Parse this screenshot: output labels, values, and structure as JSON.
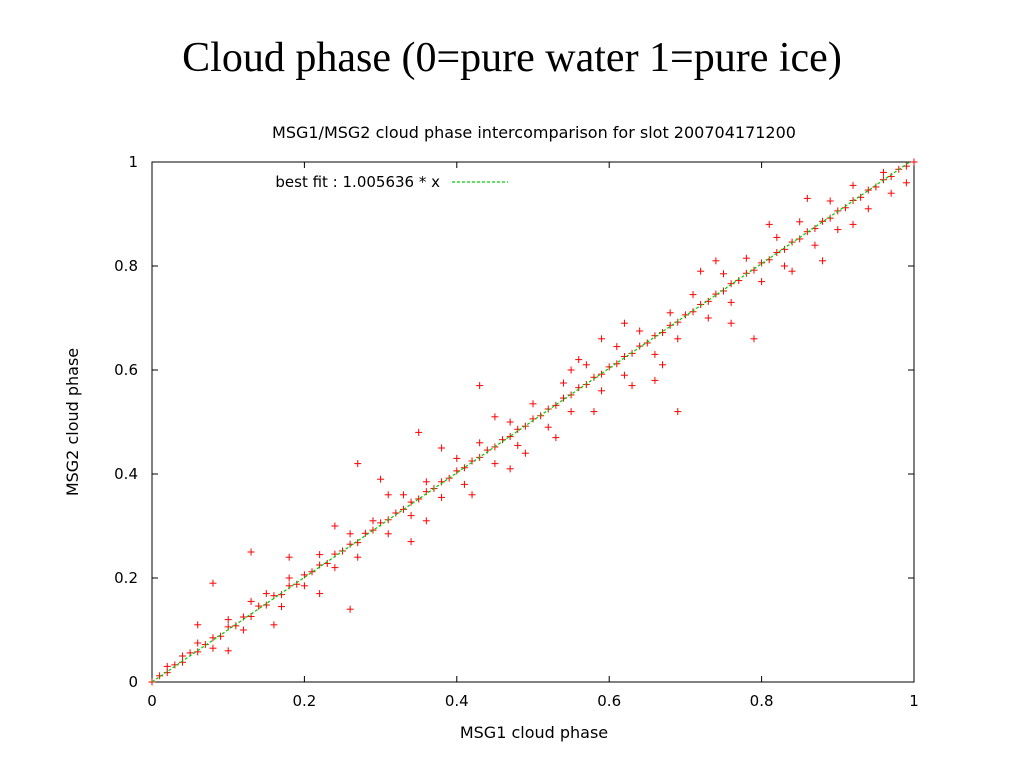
{
  "slide": {
    "title": "Cloud phase (0=pure water 1=pure ice)"
  },
  "chart_data": {
    "type": "scatter",
    "title": "MSG1/MSG2 cloud phase intercomparison for slot 200704171200",
    "xlabel": "MSG1 cloud phase",
    "ylabel": "MSG2 cloud phase",
    "xlim": [
      0,
      1
    ],
    "ylim": [
      0,
      1
    ],
    "xticks": [
      0,
      0.2,
      0.4,
      0.6,
      0.8,
      1
    ],
    "yticks": [
      0,
      0.2,
      0.4,
      0.6,
      0.8,
      1
    ],
    "xtick_labels": [
      "0",
      "0.2",
      "0.4",
      "0.6",
      "0.8",
      "1"
    ],
    "ytick_labels": [
      "0",
      "0.2",
      "0.4",
      "0.6",
      "0.8",
      "1"
    ],
    "grid": false,
    "legend_placement": "top-left",
    "marker": "+",
    "series": [
      {
        "color": "#ff0000",
        "points": [
          [
            0.0,
            0.0
          ],
          [
            0.01,
            0.012
          ],
          [
            0.02,
            0.018
          ],
          [
            0.03,
            0.033
          ],
          [
            0.04,
            0.038
          ],
          [
            0.05,
            0.056
          ],
          [
            0.06,
            0.058
          ],
          [
            0.07,
            0.072
          ],
          [
            0.08,
            0.085
          ],
          [
            0.09,
            0.088
          ],
          [
            0.1,
            0.106
          ],
          [
            0.11,
            0.108
          ],
          [
            0.12,
            0.125
          ],
          [
            0.13,
            0.126
          ],
          [
            0.14,
            0.146
          ],
          [
            0.15,
            0.148
          ],
          [
            0.16,
            0.166
          ],
          [
            0.17,
            0.168
          ],
          [
            0.18,
            0.185
          ],
          [
            0.19,
            0.188
          ],
          [
            0.2,
            0.206
          ],
          [
            0.21,
            0.212
          ],
          [
            0.22,
            0.225
          ],
          [
            0.23,
            0.228
          ],
          [
            0.24,
            0.246
          ],
          [
            0.25,
            0.252
          ],
          [
            0.26,
            0.265
          ],
          [
            0.27,
            0.268
          ],
          [
            0.28,
            0.286
          ],
          [
            0.29,
            0.292
          ],
          [
            0.3,
            0.306
          ],
          [
            0.31,
            0.312
          ],
          [
            0.32,
            0.325
          ],
          [
            0.33,
            0.332
          ],
          [
            0.34,
            0.346
          ],
          [
            0.35,
            0.352
          ],
          [
            0.36,
            0.366
          ],
          [
            0.37,
            0.372
          ],
          [
            0.38,
            0.385
          ],
          [
            0.39,
            0.392
          ],
          [
            0.4,
            0.406
          ],
          [
            0.41,
            0.412
          ],
          [
            0.42,
            0.425
          ],
          [
            0.43,
            0.432
          ],
          [
            0.44,
            0.446
          ],
          [
            0.45,
            0.452
          ],
          [
            0.46,
            0.466
          ],
          [
            0.47,
            0.472
          ],
          [
            0.48,
            0.486
          ],
          [
            0.49,
            0.492
          ],
          [
            0.5,
            0.506
          ],
          [
            0.51,
            0.512
          ],
          [
            0.52,
            0.525
          ],
          [
            0.53,
            0.532
          ],
          [
            0.54,
            0.546
          ],
          [
            0.55,
            0.552
          ],
          [
            0.56,
            0.566
          ],
          [
            0.57,
            0.572
          ],
          [
            0.58,
            0.586
          ],
          [
            0.59,
            0.592
          ],
          [
            0.6,
            0.606
          ],
          [
            0.61,
            0.612
          ],
          [
            0.62,
            0.626
          ],
          [
            0.63,
            0.632
          ],
          [
            0.64,
            0.646
          ],
          [
            0.65,
            0.652
          ],
          [
            0.66,
            0.666
          ],
          [
            0.67,
            0.672
          ],
          [
            0.68,
            0.686
          ],
          [
            0.69,
            0.692
          ],
          [
            0.7,
            0.706
          ],
          [
            0.71,
            0.712
          ],
          [
            0.72,
            0.726
          ],
          [
            0.73,
            0.732
          ],
          [
            0.74,
            0.746
          ],
          [
            0.75,
            0.752
          ],
          [
            0.76,
            0.766
          ],
          [
            0.77,
            0.772
          ],
          [
            0.78,
            0.786
          ],
          [
            0.79,
            0.792
          ],
          [
            0.8,
            0.806
          ],
          [
            0.81,
            0.812
          ],
          [
            0.82,
            0.826
          ],
          [
            0.83,
            0.832
          ],
          [
            0.84,
            0.846
          ],
          [
            0.85,
            0.852
          ],
          [
            0.86,
            0.866
          ],
          [
            0.87,
            0.872
          ],
          [
            0.88,
            0.886
          ],
          [
            0.89,
            0.892
          ],
          [
            0.9,
            0.906
          ],
          [
            0.91,
            0.912
          ],
          [
            0.92,
            0.926
          ],
          [
            0.93,
            0.932
          ],
          [
            0.94,
            0.946
          ],
          [
            0.95,
            0.952
          ],
          [
            0.96,
            0.966
          ],
          [
            0.97,
            0.972
          ],
          [
            0.98,
            0.986
          ],
          [
            0.99,
            0.992
          ],
          [
            1.0,
            1.0
          ],
          [
            0.02,
            0.03
          ],
          [
            0.04,
            0.05
          ],
          [
            0.06,
            0.075
          ],
          [
            0.08,
            0.065
          ],
          [
            0.1,
            0.12
          ],
          [
            0.12,
            0.1
          ],
          [
            0.13,
            0.155
          ],
          [
            0.15,
            0.17
          ],
          [
            0.17,
            0.145
          ],
          [
            0.18,
            0.2
          ],
          [
            0.2,
            0.185
          ],
          [
            0.22,
            0.245
          ],
          [
            0.24,
            0.22
          ],
          [
            0.26,
            0.285
          ],
          [
            0.27,
            0.24
          ],
          [
            0.29,
            0.31
          ],
          [
            0.31,
            0.285
          ],
          [
            0.33,
            0.36
          ],
          [
            0.34,
            0.32
          ],
          [
            0.36,
            0.385
          ],
          [
            0.38,
            0.355
          ],
          [
            0.4,
            0.43
          ],
          [
            0.41,
            0.38
          ],
          [
            0.43,
            0.46
          ],
          [
            0.45,
            0.42
          ],
          [
            0.47,
            0.5
          ],
          [
            0.48,
            0.455
          ],
          [
            0.5,
            0.535
          ],
          [
            0.52,
            0.49
          ],
          [
            0.54,
            0.575
          ],
          [
            0.55,
            0.52
          ],
          [
            0.57,
            0.61
          ],
          [
            0.59,
            0.56
          ],
          [
            0.61,
            0.645
          ],
          [
            0.62,
            0.59
          ],
          [
            0.64,
            0.675
          ],
          [
            0.66,
            0.63
          ],
          [
            0.68,
            0.71
          ],
          [
            0.69,
            0.66
          ],
          [
            0.71,
            0.745
          ],
          [
            0.73,
            0.7
          ],
          [
            0.75,
            0.785
          ],
          [
            0.76,
            0.73
          ],
          [
            0.78,
            0.815
          ],
          [
            0.8,
            0.77
          ],
          [
            0.82,
            0.855
          ],
          [
            0.83,
            0.8
          ],
          [
            0.85,
            0.885
          ],
          [
            0.87,
            0.84
          ],
          [
            0.89,
            0.925
          ],
          [
            0.9,
            0.87
          ],
          [
            0.92,
            0.955
          ],
          [
            0.94,
            0.91
          ],
          [
            0.96,
            0.98
          ],
          [
            0.97,
            0.94
          ],
          [
            0.99,
            0.96
          ],
          [
            0.13,
            0.25
          ],
          [
            0.08,
            0.19
          ],
          [
            0.26,
            0.14
          ],
          [
            0.22,
            0.17
          ],
          [
            0.3,
            0.39
          ],
          [
            0.27,
            0.42
          ],
          [
            0.35,
            0.48
          ],
          [
            0.43,
            0.57
          ],
          [
            0.36,
            0.31
          ],
          [
            0.42,
            0.36
          ],
          [
            0.49,
            0.44
          ],
          [
            0.55,
            0.6
          ],
          [
            0.59,
            0.66
          ],
          [
            0.66,
            0.58
          ],
          [
            0.69,
            0.52
          ],
          [
            0.72,
            0.79
          ],
          [
            0.76,
            0.69
          ],
          [
            0.79,
            0.66
          ],
          [
            0.84,
            0.79
          ],
          [
            0.88,
            0.81
          ],
          [
            0.62,
            0.69
          ],
          [
            0.53,
            0.47
          ],
          [
            0.47,
            0.41
          ],
          [
            0.38,
            0.45
          ],
          [
            0.31,
            0.36
          ],
          [
            0.18,
            0.24
          ],
          [
            0.16,
            0.11
          ],
          [
            0.06,
            0.11
          ],
          [
            0.1,
            0.06
          ],
          [
            0.92,
            0.88
          ],
          [
            0.67,
            0.61
          ],
          [
            0.74,
            0.81
          ],
          [
            0.81,
            0.88
          ],
          [
            0.58,
            0.52
          ],
          [
            0.45,
            0.51
          ],
          [
            0.34,
            0.27
          ],
          [
            0.24,
            0.3
          ],
          [
            0.56,
            0.62
          ],
          [
            0.63,
            0.57
          ],
          [
            0.86,
            0.93
          ]
        ]
      },
      {
        "name": "best fit : 1.005636 * x",
        "type": "line",
        "color": "#00cc00",
        "slope": 1.005636,
        "x": [
          0,
          1
        ],
        "y": [
          0,
          1.005636
        ]
      }
    ]
  }
}
